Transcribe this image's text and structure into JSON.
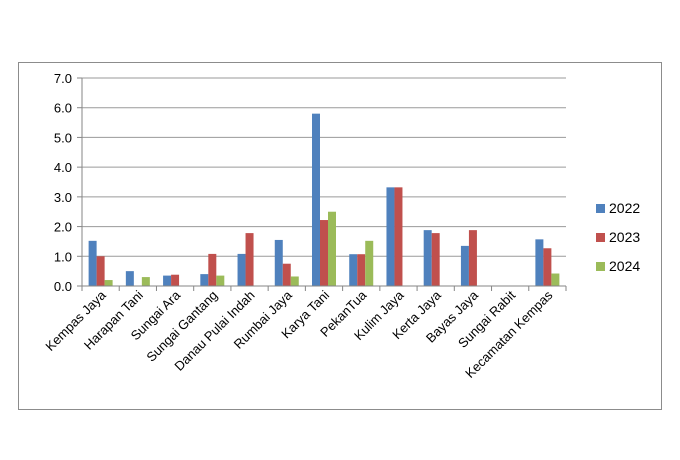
{
  "chart_data": {
    "type": "bar",
    "categories": [
      "Kempas Jaya",
      "Harapan Tani",
      "Sungai Ara",
      "Sungai Gantang",
      "Danau Pulai Indah",
      "Rumbai Jaya",
      "Karya Tani",
      "PekanTua",
      "Kulim Jaya",
      "Kerta Jaya",
      "Bayas Jaya",
      "Sungai Rabit",
      "Kecamatan Kempas"
    ],
    "series": [
      {
        "name": "2022",
        "color": "#4f81bd",
        "values": [
          1.52,
          0.5,
          0.35,
          0.4,
          1.08,
          1.55,
          5.8,
          1.07,
          3.32,
          1.88,
          1.35,
          0,
          1.57
        ]
      },
      {
        "name": "2023",
        "color": "#c0504d",
        "values": [
          1.0,
          0,
          0.38,
          1.08,
          1.78,
          0.75,
          2.22,
          1.07,
          3.32,
          1.78,
          1.88,
          0,
          1.27
        ]
      },
      {
        "name": "2024",
        "color": "#9bbb59",
        "values": [
          0.2,
          0.3,
          0,
          0.35,
          0,
          0.32,
          2.5,
          1.52,
          0,
          0,
          0,
          0,
          0.42
        ]
      }
    ],
    "yticks": [
      "0.0",
      "1.0",
      "2.0",
      "3.0",
      "4.0",
      "5.0",
      "6.0",
      "7.0"
    ],
    "ylim": [
      0,
      7
    ],
    "grid": true,
    "legend_position": "right",
    "title": "",
    "xlabel": "",
    "ylabel": ""
  }
}
